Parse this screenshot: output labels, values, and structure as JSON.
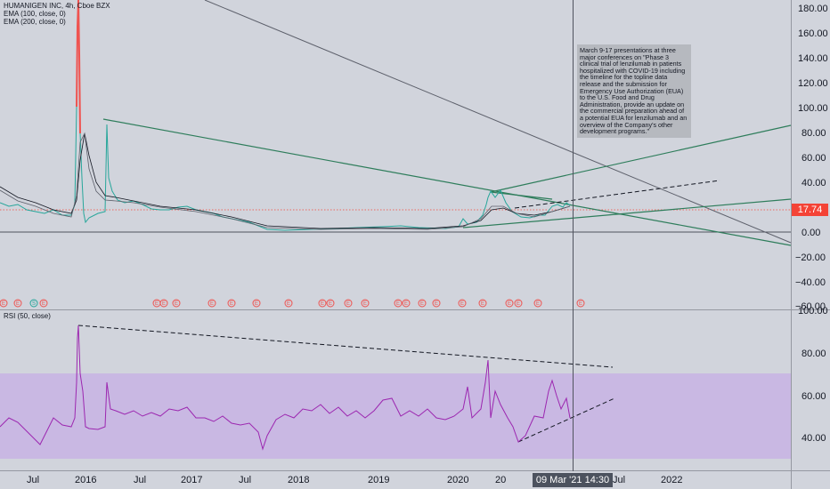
{
  "legend": {
    "symbol": "HUMANIGEN INC, 4h, Cboe BZX",
    "ema100": "EMA (100, close, 0)",
    "ema200": "EMA (200, close, 0)",
    "rsi": "RSI (50, close)"
  },
  "price_axis": {
    "ticks": [
      "180.00",
      "160.00",
      "140.00",
      "120.00",
      "100.00",
      "80.00",
      "60.00",
      "40.00",
      "20.00",
      "0.00",
      "−20.00",
      "−40.00",
      "−60.00"
    ],
    "last_price": "17.74"
  },
  "rsi_axis": {
    "ticks": [
      "100.00",
      "80.00",
      "60.00",
      "40.00"
    ]
  },
  "time_axis": {
    "labels": [
      "Jul",
      "2016",
      "Jul",
      "2017",
      "Jul",
      "2018",
      "2019",
      "2020",
      "20",
      "Jul",
      "2022"
    ],
    "crosshair_time": "09 Mar '21  14:30"
  },
  "note": {
    "text": "March 9-17 presentations at three major conferences on \"Phase 3 clinical trial of lenzilumab in patients hospitalized with COVID-19 including the timeline for the topline data release and the submission for Emergency Use Authorization (EUA) to the U.S. Food and Drug Administration, provide an update on the commercial preparation ahead of a potential EUA for lenzilumab and an overview of the Company's other development programs.\""
  },
  "markers": {
    "earnings_label": "E",
    "split_label": "S"
  },
  "colors": {
    "background": "#d1d4dc",
    "trendline_green": "#2e7d5b",
    "trendline_gray": "#5d606b",
    "rsi_line": "#9c27b0",
    "rsi_band": "#c9b8e3",
    "price_tag": "#f44336",
    "earnings_marker": "#ef5350"
  }
}
